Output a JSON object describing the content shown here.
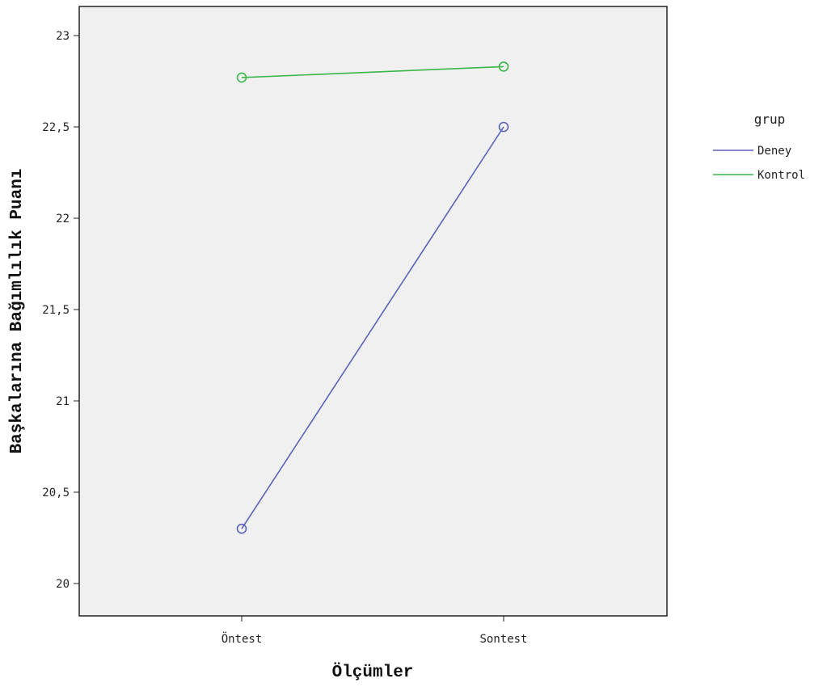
{
  "chart_data": {
    "type": "line",
    "categories": [
      "Öntest",
      "Sontest"
    ],
    "xlabel": "Ölçümler",
    "ylabel": "Başkalarına Bağımlılık Puanı",
    "ylim": [
      19.9,
      23.15
    ],
    "yticks": [
      "20",
      "20,5",
      "21",
      "21,5",
      "22",
      "22,5",
      "23"
    ],
    "ytick_values": [
      20,
      20.5,
      21,
      21.5,
      22,
      22.5,
      23
    ],
    "grid": false,
    "legend": {
      "title": "grup",
      "position": "right"
    },
    "series": [
      {
        "name": "Deney",
        "values": [
          20.3,
          22.5
        ],
        "color": "#5a62b8"
      },
      {
        "name": "Kontrol",
        "values": [
          22.77,
          22.83
        ],
        "color": "#3cb54a"
      }
    ],
    "plot_background": "#f0f0f0"
  }
}
